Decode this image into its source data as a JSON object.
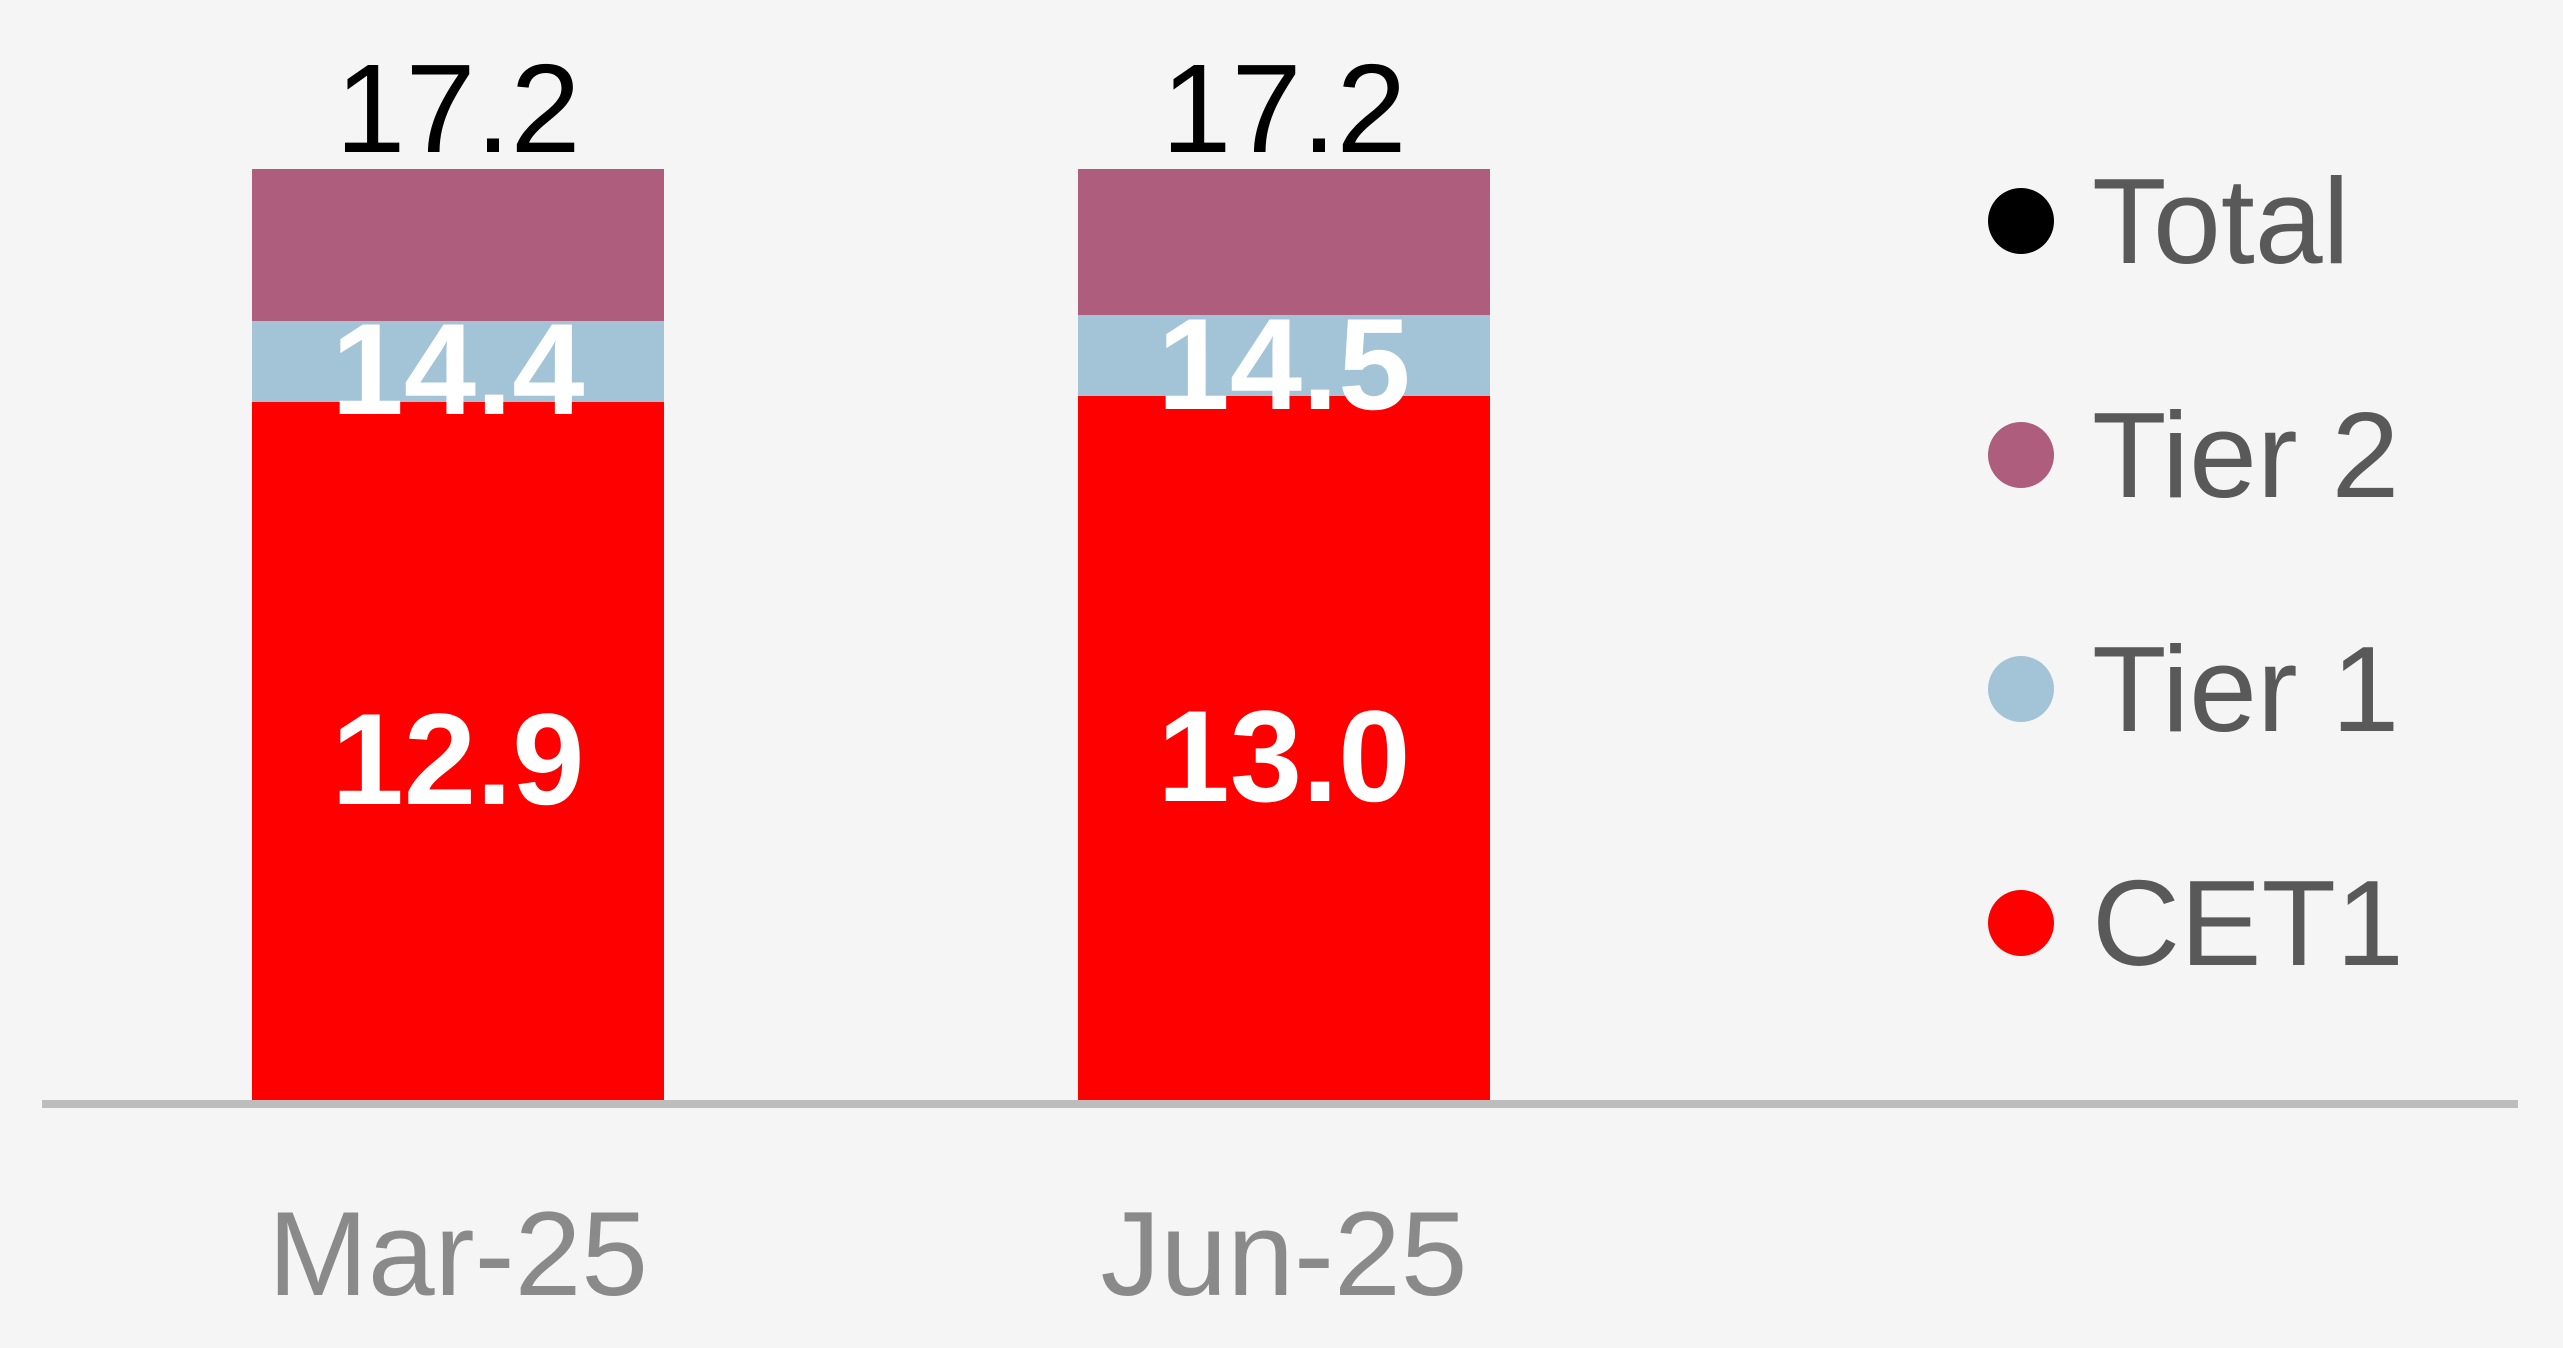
{
  "styles": {
    "background": "#f5f5f5",
    "axis_line_color": "#bdbdbd",
    "axis_label_color": "#8a8a8a",
    "legend_label_color": "#595959",
    "inside_label_color": "#ffffff",
    "total_label_color": "#000000"
  },
  "chart_data": {
    "type": "bar",
    "stacked": true,
    "orientation": "vertical",
    "title": "",
    "categories": [
      "Mar-25",
      "Jun-25"
    ],
    "series": [
      {
        "name": "CET1",
        "role": "segment",
        "color": "#ff0000",
        "cumulative_values": [
          12.9,
          13.0
        ],
        "segment_values": [
          12.9,
          13.0
        ],
        "labels": [
          "12.9",
          "13.0"
        ],
        "label_placement": "inside-segment-center",
        "label_color": "#ffffff"
      },
      {
        "name": "Tier 1",
        "role": "segment",
        "color": "#a2c4d6",
        "cumulative_values": [
          14.4,
          14.5
        ],
        "segment_values": [
          1.5,
          1.5
        ],
        "labels": [
          "14.4",
          "14.5"
        ],
        "label_placement": "inside-segment-center",
        "label_color": "#ffffff"
      },
      {
        "name": "Tier 2",
        "role": "segment",
        "color": "#ae5d7d",
        "cumulative_values": [
          17.2,
          17.2
        ],
        "segment_values": [
          2.8,
          2.7
        ],
        "labels": [
          null,
          null
        ],
        "label_placement": "none",
        "label_color": null
      },
      {
        "name": "Total",
        "role": "total-marker",
        "color": "#000000",
        "cumulative_values": [
          17.2,
          17.2
        ],
        "labels": [
          "17.2",
          "17.2"
        ],
        "label_placement": "above-bar",
        "label_color": "#000000"
      }
    ],
    "ylim": [
      0,
      17.2
    ],
    "grid": false,
    "value_axis_visible": false,
    "legend": {
      "position": "right",
      "entries": [
        {
          "label": "Total",
          "color": "#000000"
        },
        {
          "label": "Tier 2",
          "color": "#ae5d7d"
        },
        {
          "label": "Tier 1",
          "color": "#a2c4d6"
        },
        {
          "label": "CET1",
          "color": "#ff0000"
        }
      ]
    }
  }
}
